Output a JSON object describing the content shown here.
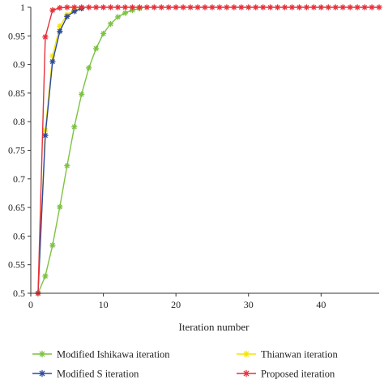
{
  "chart_data": {
    "type": "line",
    "xlabel": "Iteration number",
    "ylabel": "",
    "xlim": [
      0,
      48
    ],
    "ylim": [
      0.5,
      1
    ],
    "xticks": [
      0,
      10,
      20,
      30,
      40
    ],
    "yticks": [
      0.5,
      0.55,
      0.6,
      0.65,
      0.7,
      0.75,
      0.8,
      0.85,
      0.9,
      0.95,
      1
    ],
    "ytick_labels": [
      "0.5",
      "0.55",
      "0.6",
      "0.65",
      "0.7",
      "0.75",
      "0.8",
      "0.85",
      "0.9",
      "0.95",
      "1"
    ],
    "grid": false,
    "legend_position": "bottom",
    "series": [
      {
        "name": "Modified Ishikawa iteration",
        "color": "#7dc242",
        "marker": "asterisk",
        "x": [
          1,
          2,
          3,
          4,
          5,
          6,
          7,
          8,
          9,
          10,
          11,
          12,
          13,
          14,
          15
        ],
        "y": [
          0.5,
          0.53,
          0.584,
          0.651,
          0.723,
          0.791,
          0.848,
          0.894,
          0.928,
          0.954,
          0.971,
          0.983,
          0.99,
          0.995,
          0.998
        ]
      },
      {
        "name": "Thianwan iteration",
        "color": "#f5e400",
        "marker": "asterisk",
        "x": [
          1,
          2,
          3,
          4,
          5,
          6,
          7
        ],
        "y": [
          0.5,
          0.785,
          0.915,
          0.967,
          0.987,
          0.995,
          0.998
        ]
      },
      {
        "name": "Modified S iteration",
        "color": "#2e4a9a",
        "marker": "asterisk",
        "x": [
          1,
          2,
          3,
          4,
          5,
          6,
          7
        ],
        "y": [
          0.5,
          0.776,
          0.905,
          0.958,
          0.984,
          0.993,
          0.998
        ]
      },
      {
        "name": "Proposed iteration",
        "color": "#e8313a",
        "marker": "asterisk",
        "x": [
          1,
          2,
          3,
          4,
          5,
          6,
          7,
          8,
          9,
          10,
          11,
          12,
          13,
          14,
          15,
          16,
          17,
          18,
          19,
          20,
          21,
          22,
          23,
          24,
          25,
          26,
          27,
          28,
          29,
          30,
          31,
          32,
          33,
          34,
          35,
          36,
          37,
          38,
          39,
          40,
          41,
          42,
          43,
          44,
          45,
          46,
          47,
          48
        ],
        "y": [
          0.5,
          0.948,
          0.995,
          0.999,
          1,
          1,
          1,
          1,
          1,
          1,
          1,
          1,
          1,
          1,
          1,
          1,
          1,
          1,
          1,
          1,
          1,
          1,
          1,
          1,
          1,
          1,
          1,
          1,
          1,
          1,
          1,
          1,
          1,
          1,
          1,
          1,
          1,
          1,
          1,
          1,
          1,
          1,
          1,
          1,
          1,
          1,
          1,
          1
        ]
      }
    ]
  },
  "legend": [
    {
      "label": "Modified Ishikawa iteration",
      "color": "#7dc242"
    },
    {
      "label": "Thianwan iteration",
      "color": "#f5e400"
    },
    {
      "label": "Modified S iteration",
      "color": "#2e4a9a"
    },
    {
      "label": "Proposed iteration",
      "color": "#e8313a"
    }
  ]
}
